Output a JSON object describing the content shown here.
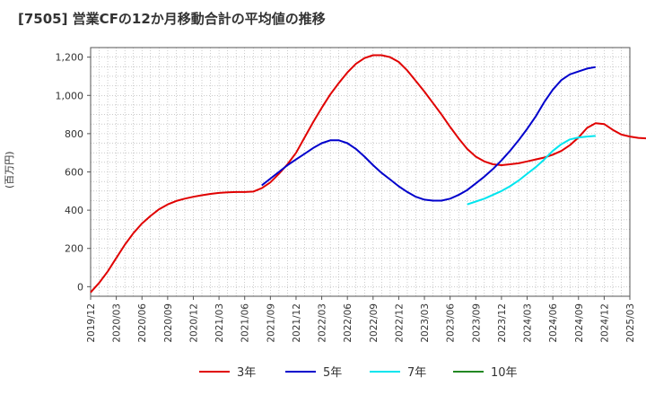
{
  "chart_data": {
    "type": "line",
    "title": "[7505]  営業CFの12か月移動合計の平均値の推移",
    "ylabel": "(百万円)",
    "xlabel": "",
    "ylim": [
      -50,
      1250
    ],
    "yticks": [
      0,
      200,
      400,
      600,
      800,
      1000,
      1200
    ],
    "ytick_labels": [
      "0",
      "200",
      "400",
      "600",
      "800",
      "1,000",
      "1,200"
    ],
    "xticks": [
      "2019/12",
      "2020/03",
      "2020/06",
      "2020/09",
      "2020/12",
      "2021/03",
      "2021/06",
      "2021/09",
      "2021/12",
      "2022/03",
      "2022/06",
      "2022/09",
      "2022/12",
      "2023/03",
      "2023/06",
      "2023/09",
      "2023/12",
      "2024/03",
      "2024/06",
      "2024/09",
      "2024/12",
      "2025/03"
    ],
    "grid": true,
    "legend_position": "bottom",
    "series": [
      {
        "name": "3年",
        "color": "#e00000",
        "start": "2019/12",
        "values": [
          -30,
          20,
          80,
          150,
          220,
          280,
          330,
          370,
          405,
          430,
          448,
          460,
          470,
          478,
          485,
          490,
          493,
          495,
          495,
          497,
          515,
          545,
          590,
          640,
          700,
          780,
          860,
          935,
          1005,
          1065,
          1120,
          1165,
          1195,
          1210,
          1210,
          1200,
          1175,
          1130,
          1075,
          1020,
          960,
          900,
          835,
          775,
          720,
          680,
          655,
          640,
          635,
          640,
          645,
          655,
          665,
          675,
          690,
          710,
          740,
          780,
          830,
          855,
          850,
          820,
          795,
          785,
          778,
          775
        ]
      },
      {
        "name": "5年",
        "color": "#0000cc",
        "start": "2021/08",
        "values": [
          530,
          565,
          600,
          635,
          665,
          695,
          725,
          750,
          765,
          765,
          750,
          720,
          680,
          635,
          595,
          560,
          525,
          495,
          470,
          455,
          450,
          450,
          460,
          480,
          505,
          540,
          575,
          615,
          660,
          710,
          765,
          825,
          890,
          965,
          1030,
          1080,
          1110,
          1125,
          1140,
          1148
        ]
      },
      {
        "name": "7年",
        "color": "#00e5ee",
        "start": "2023/08",
        "values": [
          430,
          445,
          460,
          480,
          500,
          525,
          555,
          590,
          625,
          665,
          710,
          745,
          770,
          780,
          785,
          788
        ]
      },
      {
        "name": "10年",
        "color": "#228822",
        "start": "2024/12",
        "values": []
      }
    ]
  }
}
